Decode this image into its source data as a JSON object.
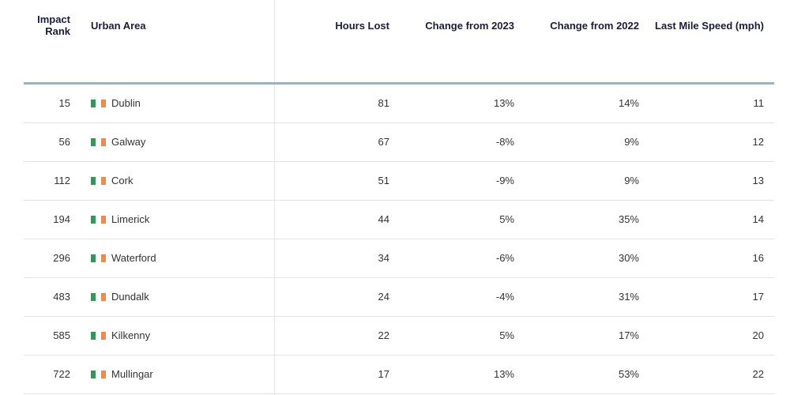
{
  "headers": {
    "rank_line1": "Impact",
    "rank_line2": "Rank",
    "area": "Urban Area",
    "hours": "Hours Lost",
    "change_2023": "Change from 2023",
    "change_2022": "Change from 2022",
    "speed": "Last Mile Speed (mph)"
  },
  "flag_icon": "ireland-flag-icon",
  "flag_colors": {
    "green": "#2e9a58",
    "orange": "#f08a4b"
  },
  "rows": [
    {
      "rank": "15",
      "area": "Dublin",
      "hours": "81",
      "change_2023": "13%",
      "change_2022": "14%",
      "speed": "11"
    },
    {
      "rank": "56",
      "area": "Galway",
      "hours": "67",
      "change_2023": "-8%",
      "change_2022": "9%",
      "speed": "12"
    },
    {
      "rank": "112",
      "area": "Cork",
      "hours": "51",
      "change_2023": "-9%",
      "change_2022": "9%",
      "speed": "13"
    },
    {
      "rank": "194",
      "area": "Limerick",
      "hours": "44",
      "change_2023": "5%",
      "change_2022": "35%",
      "speed": "14"
    },
    {
      "rank": "296",
      "area": "Waterford",
      "hours": "34",
      "change_2023": "-6%",
      "change_2022": "30%",
      "speed": "16"
    },
    {
      "rank": "483",
      "area": "Dundalk",
      "hours": "24",
      "change_2023": "-4%",
      "change_2022": "31%",
      "speed": "17"
    },
    {
      "rank": "585",
      "area": "Kilkenny",
      "hours": "22",
      "change_2023": "5%",
      "change_2022": "17%",
      "speed": "20"
    },
    {
      "rank": "722",
      "area": "Mullingar",
      "hours": "17",
      "change_2023": "13%",
      "change_2022": "53%",
      "speed": "22"
    }
  ]
}
